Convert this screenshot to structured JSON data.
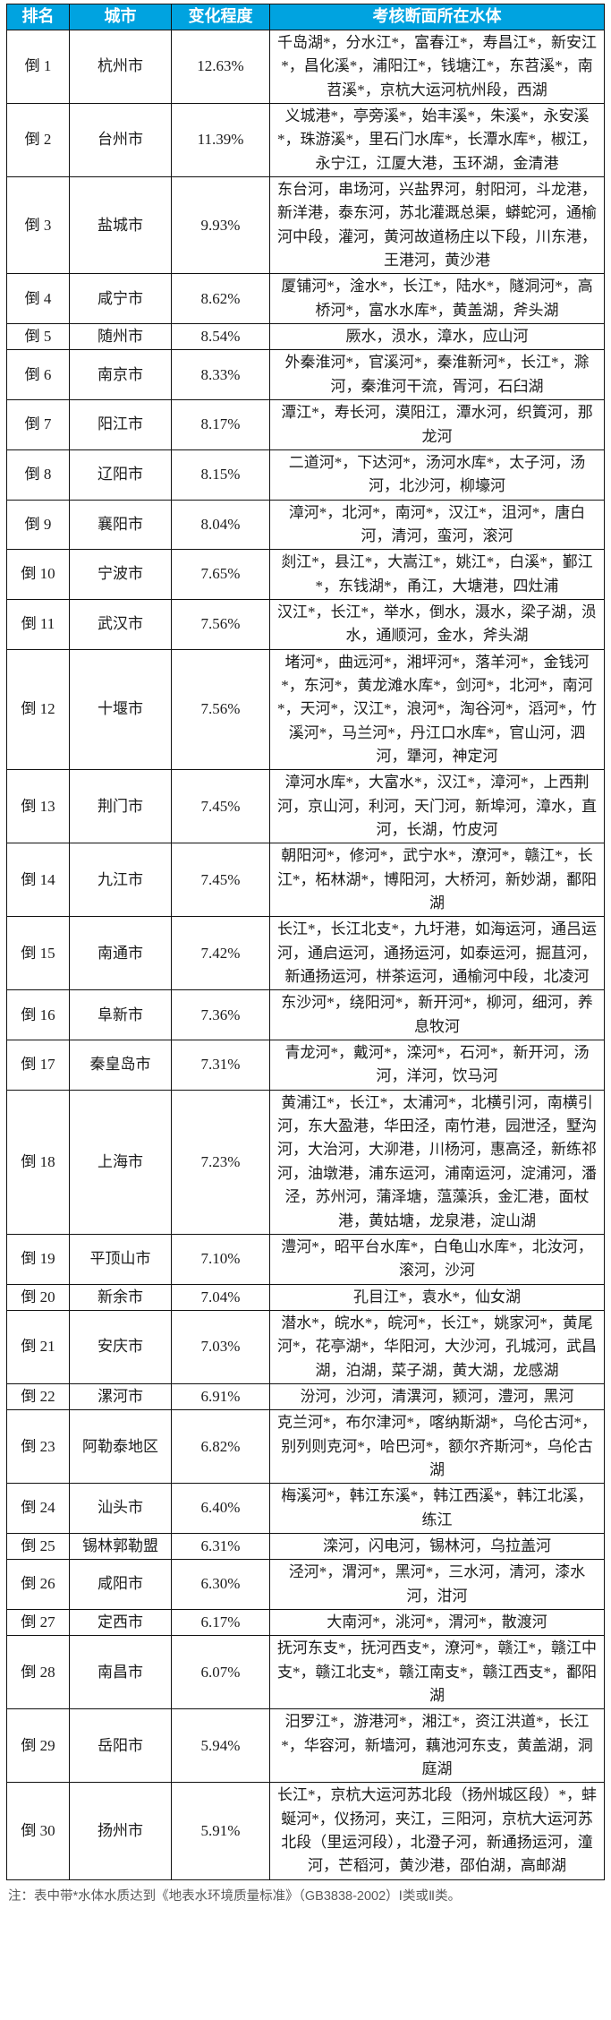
{
  "colors": {
    "header_bg": "#00a3e0",
    "header_text": "#ffffff",
    "border": "#111111",
    "note_text": "#595959"
  },
  "table": {
    "headers": [
      "排名",
      "城市",
      "变化程度",
      "考核断面所在水体"
    ],
    "rows": [
      {
        "rank": "倒 1",
        "city": "杭州市",
        "change": "12.63%",
        "waters": "千岛湖*，分水江*，富春江*，寿昌江*，新安江*，昌化溪*，浦阳江*，钱塘江*，东苕溪*，南苕溪*，京杭大运河杭州段，西湖"
      },
      {
        "rank": "倒 2",
        "city": "台州市",
        "change": "11.39%",
        "waters": "义城港*，亭旁溪*，始丰溪*，朱溪*，永安溪*，珠游溪*，里石门水库*，长潭水库*，椒江，永宁江，江厦大港，玉环湖，金清港"
      },
      {
        "rank": "倒 3",
        "city": "盐城市",
        "change": "9.93%",
        "waters": "东台河，串场河，兴盐界河，射阳河，斗龙港，新洋港，泰东河，苏北灌溉总渠，蟒蛇河，通榆河中段，灌河，黄河故道杨庄以下段，川东港，王港河，黄沙港"
      },
      {
        "rank": "倒 4",
        "city": "咸宁市",
        "change": "8.62%",
        "waters": "厦铺河*，淦水*，长江*，陆水*，隧洞河*，高桥河*，富水水库*，黄盖湖，斧头湖"
      },
      {
        "rank": "倒 5",
        "city": "随州市",
        "change": "8.54%",
        "waters": "厥水，涢水，漳水，应山河"
      },
      {
        "rank": "倒 6",
        "city": "南京市",
        "change": "8.33%",
        "waters": "外秦淮河*，官溪河*，秦淮新河*，长江*，滁河，秦淮河干流，胥河，石臼湖"
      },
      {
        "rank": "倒 7",
        "city": "阳江市",
        "change": "8.17%",
        "waters": "潭江*，寿长河，漠阳江，潭水河，织篢河，那龙河"
      },
      {
        "rank": "倒 8",
        "city": "辽阳市",
        "change": "8.15%",
        "waters": "二道河*，下达河*，汤河水库*，太子河，汤河，北沙河，柳壕河"
      },
      {
        "rank": "倒 9",
        "city": "襄阳市",
        "change": "8.04%",
        "waters": "漳河*，北河*，南河*，汉江*，沮河*，唐白河，清河，蛮河，滚河"
      },
      {
        "rank": "倒 10",
        "city": "宁波市",
        "change": "7.65%",
        "waters": "剡江*，县江*，大嵩江*，姚江*，白溪*，鄞江*，东钱湖*，甬江，大塘港，四灶浦"
      },
      {
        "rank": "倒 11",
        "city": "武汉市",
        "change": "7.56%",
        "waters": "汉江*，长江*，举水，倒水，滠水，梁子湖，涢水，通顺河，金水，斧头湖"
      },
      {
        "rank": "倒 12",
        "city": "十堰市",
        "change": "7.56%",
        "waters": "堵河*，曲远河*，湘坪河*，落羊河*，金钱河*，东河*，黄龙滩水库*，剑河*，北河*，南河*，天河*，汉江*，浪河*，淘谷河*，滔河*，竹溪河*，马兰河*，丹江口水库*，官山河，泗河，犟河，神定河"
      },
      {
        "rank": "倒 13",
        "city": "荆门市",
        "change": "7.45%",
        "waters": "漳河水库*，大富水*，汉江*，漳河*，上西荆河，京山河，利河，天门河，新埠河，漳水，直河，长湖，竹皮河"
      },
      {
        "rank": "倒 14",
        "city": "九江市",
        "change": "7.45%",
        "waters": "朝阳河*，修河*，武宁水*，潦河*，赣江*，长江*，柘林湖*，博阳河，大桥河，新妙湖，鄱阳湖"
      },
      {
        "rank": "倒 15",
        "city": "南通市",
        "change": "7.42%",
        "waters": "长江*，长江北支*，九圩港，如海运河，通吕运河，通启运河，通扬运河，如泰运河，掘苴河，新通扬运河，栟茶运河，通榆河中段，北凌河"
      },
      {
        "rank": "倒 16",
        "city": "阜新市",
        "change": "7.36%",
        "waters": "东沙河*，绕阳河*，新开河*，柳河，细河，养息牧河"
      },
      {
        "rank": "倒 17",
        "city": "秦皇岛市",
        "change": "7.31%",
        "waters": "青龙河*，戴河*，滦河*，石河*，新开河，汤河，洋河，饮马河"
      },
      {
        "rank": "倒 18",
        "city": "上海市",
        "change": "7.23%",
        "waters": "黄浦江*，长江*，太浦河*，北横引河，南横引河，东大盈港，华田泾，南竹港，园泄泾，墅沟河，大治河，大泖港，川杨河，惠高泾，新练祁河，油墩港，浦东运河，浦南运河，淀浦河，潘泾，苏州河，蒲泽塘，蕰藻浜，金汇港，面杖港，黄姑塘，龙泉港，淀山湖"
      },
      {
        "rank": "倒 19",
        "city": "平顶山市",
        "change": "7.10%",
        "waters": "澧河*，昭平台水库*，白龟山水库*，北汝河，滚河，沙河"
      },
      {
        "rank": "倒 20",
        "city": "新余市",
        "change": "7.04%",
        "waters": "孔目江*，袁水*，仙女湖"
      },
      {
        "rank": "倒 21",
        "city": "安庆市",
        "change": "7.03%",
        "waters": "潜水*，皖水*，皖河*，长江*，姚家河*，黄尾河*，花亭湖*，华阳河，大沙河，孔城河，武昌湖，泊湖，菜子湖，黄大湖，龙感湖"
      },
      {
        "rank": "倒 22",
        "city": "漯河市",
        "change": "6.91%",
        "waters": "汾河，沙河，清潩河，颍河，澧河，黑河"
      },
      {
        "rank": "倒 23",
        "city": "阿勒泰地区",
        "change": "6.82%",
        "waters": "克兰河*，布尔津河*，喀纳斯湖*，乌伦古河*，别列则克河*，哈巴河*，额尔齐斯河*，乌伦古湖"
      },
      {
        "rank": "倒 24",
        "city": "汕头市",
        "change": "6.40%",
        "waters": "梅溪河*，韩江东溪*，韩江西溪*，韩江北溪，练江"
      },
      {
        "rank": "倒 25",
        "city": "锡林郭勒盟",
        "change": "6.31%",
        "waters": "滦河，闪电河，锡林河，乌拉盖河"
      },
      {
        "rank": "倒 26",
        "city": "咸阳市",
        "change": "6.30%",
        "waters": "泾河*，渭河*，黑河*，三水河，清河，漆水河，泔河"
      },
      {
        "rank": "倒 27",
        "city": "定西市",
        "change": "6.17%",
        "waters": "大南河*，洮河*，渭河*，散渡河"
      },
      {
        "rank": "倒 28",
        "city": "南昌市",
        "change": "6.07%",
        "waters": "抚河东支*，抚河西支*，潦河*，赣江*，赣江中支*，赣江北支*，赣江南支*，赣江西支*，鄱阳湖"
      },
      {
        "rank": "倒 29",
        "city": "岳阳市",
        "change": "5.94%",
        "waters": "汨罗江*，游港河*，湘江*，资江洪道*，长江*，华容河，新墙河，藕池河东支，黄盖湖，洞庭湖"
      },
      {
        "rank": "倒 30",
        "city": "扬州市",
        "change": "5.91%",
        "waters": "长江*，京杭大运河苏北段（扬州城区段）*，蚌蜒河*，仪扬河，夹江，三阳河，京杭大运河苏北段（里运河段），北澄子河，新通扬运河，潼河，芒稻河，黄沙港，邵伯湖，高邮湖"
      }
    ]
  },
  "note": "注：表中带*水体水质达到《地表水环境质量标准》（GB3838-2002）Ⅰ类或Ⅱ类。"
}
